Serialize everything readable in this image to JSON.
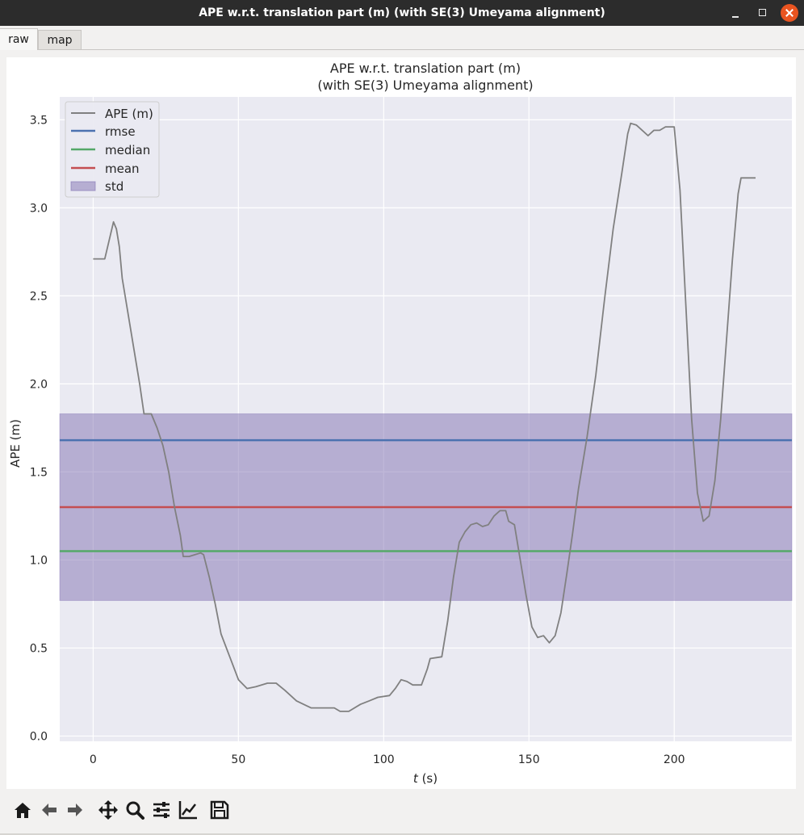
{
  "window": {
    "title": "APE w.r.t. translation part (m) (with SE(3) Umeyama alignment)",
    "controls": [
      "minimize-icon",
      "maximize-icon",
      "close-icon"
    ],
    "close_color": "#e95420"
  },
  "tabs": [
    {
      "label": "raw",
      "active": true
    },
    {
      "label": "map",
      "active": false
    }
  ],
  "toolbar": {
    "icons": [
      "home-icon",
      "back-arrow-icon",
      "forward-arrow-icon",
      "pan-icon",
      "zoom-icon",
      "configure-subplots-icon",
      "edit-axis-icon",
      "save-icon"
    ]
  },
  "chart_data": {
    "type": "line",
    "title": "APE w.r.t. translation part (m)",
    "subtitle": "(with SE(3) Umeyama alignment)",
    "xlabel": "t (s)",
    "ylabel": "APE (m)",
    "xlim": [
      -11.5,
      240.5
    ],
    "ylim": [
      -0.03,
      3.63
    ],
    "xticks": [
      0,
      50,
      100,
      150,
      200
    ],
    "xtick_labels": [
      "0",
      "50",
      "100",
      "150",
      "200"
    ],
    "yticks": [
      0.0,
      0.5,
      1.0,
      1.5,
      2.0,
      2.5,
      3.0,
      3.5
    ],
    "ytick_labels": [
      "0.0",
      "0.5",
      "1.0",
      "1.5",
      "2.0",
      "2.5",
      "3.0",
      "3.5"
    ],
    "grid": true,
    "legend_position": "upper-left",
    "legend": [
      "APE (m)",
      "rmse",
      "median",
      "mean",
      "std"
    ],
    "series": [
      {
        "name": "APE (m)",
        "color": "#808080",
        "points": [
          [
            0,
            2.71
          ],
          [
            4,
            2.71
          ],
          [
            6,
            2.85
          ],
          [
            7,
            2.92
          ],
          [
            8,
            2.88
          ],
          [
            9,
            2.78
          ],
          [
            10,
            2.6
          ],
          [
            12,
            2.4
          ],
          [
            14,
            2.2
          ],
          [
            16,
            2.0
          ],
          [
            17.5,
            1.83
          ],
          [
            20,
            1.83
          ],
          [
            22,
            1.75
          ],
          [
            24,
            1.65
          ],
          [
            26,
            1.5
          ],
          [
            28,
            1.3
          ],
          [
            30,
            1.14
          ],
          [
            31,
            1.02
          ],
          [
            33,
            1.02
          ],
          [
            35,
            1.03
          ],
          [
            37,
            1.04
          ],
          [
            38,
            1.03
          ],
          [
            40,
            0.9
          ],
          [
            42,
            0.75
          ],
          [
            44,
            0.58
          ],
          [
            47,
            0.45
          ],
          [
            50,
            0.32
          ],
          [
            53,
            0.27
          ],
          [
            56,
            0.28
          ],
          [
            60,
            0.3
          ],
          [
            63,
            0.3
          ],
          [
            66,
            0.26
          ],
          [
            70,
            0.2
          ],
          [
            75,
            0.16
          ],
          [
            80,
            0.16
          ],
          [
            83,
            0.16
          ],
          [
            85,
            0.14
          ],
          [
            88,
            0.14
          ],
          [
            92,
            0.18
          ],
          [
            95,
            0.2
          ],
          [
            98,
            0.22
          ],
          [
            102,
            0.23
          ],
          [
            104,
            0.27
          ],
          [
            106,
            0.32
          ],
          [
            108,
            0.31
          ],
          [
            110,
            0.29
          ],
          [
            113,
            0.29
          ],
          [
            115,
            0.38
          ],
          [
            116,
            0.44
          ],
          [
            120,
            0.45
          ],
          [
            122,
            0.65
          ],
          [
            124,
            0.9
          ],
          [
            126,
            1.1
          ],
          [
            128,
            1.16
          ],
          [
            130,
            1.2
          ],
          [
            132,
            1.21
          ],
          [
            134,
            1.19
          ],
          [
            136,
            1.2
          ],
          [
            138,
            1.25
          ],
          [
            140,
            1.28
          ],
          [
            142,
            1.28
          ],
          [
            143,
            1.22
          ],
          [
            145,
            1.2
          ],
          [
            147,
            1.0
          ],
          [
            149,
            0.8
          ],
          [
            151,
            0.62
          ],
          [
            153,
            0.56
          ],
          [
            155,
            0.57
          ],
          [
            157,
            0.53
          ],
          [
            159,
            0.57
          ],
          [
            161,
            0.7
          ],
          [
            163,
            0.92
          ],
          [
            165,
            1.15
          ],
          [
            167,
            1.4
          ],
          [
            170,
            1.7
          ],
          [
            173,
            2.05
          ],
          [
            176,
            2.48
          ],
          [
            179,
            2.88
          ],
          [
            182,
            3.2
          ],
          [
            184,
            3.42
          ],
          [
            185,
            3.48
          ],
          [
            187,
            3.47
          ],
          [
            189,
            3.44
          ],
          [
            191,
            3.41
          ],
          [
            193,
            3.44
          ],
          [
            195,
            3.44
          ],
          [
            197,
            3.46
          ],
          [
            199,
            3.46
          ],
          [
            200,
            3.46
          ],
          [
            202,
            3.1
          ],
          [
            204,
            2.45
          ],
          [
            206,
            1.8
          ],
          [
            208,
            1.38
          ],
          [
            210,
            1.22
          ],
          [
            212,
            1.25
          ],
          [
            214,
            1.45
          ],
          [
            216,
            1.8
          ],
          [
            218,
            2.25
          ],
          [
            220,
            2.7
          ],
          [
            222,
            3.08
          ],
          [
            223,
            3.17
          ],
          [
            225,
            3.17
          ],
          [
            228,
            3.17
          ]
        ]
      },
      {
        "name": "rmse",
        "color": "#4c72b0",
        "value": 1.68
      },
      {
        "name": "median",
        "color": "#55a868",
        "value": 1.05
      },
      {
        "name": "mean",
        "color": "#c44e52",
        "value": 1.3
      },
      {
        "name": "std",
        "color": "#8172b2",
        "lower": 0.77,
        "upper": 1.83
      }
    ]
  }
}
